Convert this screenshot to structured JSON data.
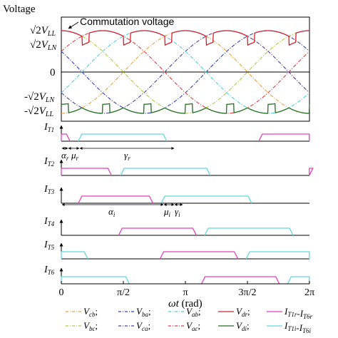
{
  "chart_data": [
    {
      "type": "line",
      "ylabel": "Voltage",
      "annotation": "Commutation voltage",
      "y_ticks": [
        "√2V_LL",
        "√2V_LN",
        "0",
        "-√2V_LN",
        "-√2V_LL"
      ],
      "x_range_rad": [
        0,
        6.2832
      ],
      "grid": false,
      "series": [
        {
          "name": "V_cb",
          "legend": "V_cb;",
          "color": "#f0a03c",
          "style": "dash-dot",
          "kind": "line-line",
          "phase_deg": -90
        },
        {
          "name": "V_bc",
          "legend": "V_bc;",
          "color": "#a8d040",
          "style": "dash-dot",
          "kind": "line-line",
          "phase_deg": 90
        },
        {
          "name": "V_ba",
          "legend": "V_ba;",
          "color": "#3040c0",
          "style": "dash-dot",
          "kind": "line-line",
          "phase_deg": 150
        },
        {
          "name": "V_ca",
          "legend": "V_ca;",
          "color": "#5040a0",
          "style": "dash-dot",
          "kind": "line-line",
          "phase_deg": -150
        },
        {
          "name": "V_ab",
          "legend": "V_ab;",
          "color": "#50d0e0",
          "style": "dash-dot",
          "kind": "line-line",
          "phase_deg": -30
        },
        {
          "name": "V_ac",
          "legend": "V_ac;",
          "color": "#e04040",
          "style": "dash-dot",
          "kind": "line-line",
          "phase_deg": 30
        },
        {
          "name": "V_dr",
          "legend": "V_dr;",
          "color": "#d02030",
          "style": "solid",
          "kind": "envelope-top"
        },
        {
          "name": "V_di",
          "legend": "V_di;",
          "color": "#207020",
          "style": "solid",
          "kind": "envelope-bottom"
        }
      ]
    },
    {
      "type": "line",
      "xlabel": "ωt (rad)",
      "x_ticks": [
        "0",
        "π/2",
        "π",
        "3π/2",
        "2π"
      ],
      "x_range_rad": [
        0,
        6.2832
      ],
      "annotations": [
        "α_r",
        "μ_r",
        "γ_r",
        "α_i",
        "μ_i",
        "γ_i"
      ],
      "legend_extra": [
        {
          "name": "I_T1r-I_T6r",
          "color": "#e040c0"
        },
        {
          "name": "I_T1i-I_T6i",
          "color": "#60d8e0"
        }
      ],
      "series": [
        {
          "name": "I_T1",
          "rectifier_on_rad": [
            [
              5.0,
              6.28
            ],
            [
              0,
              0.13
            ]
          ],
          "inverter_on_rad": [
            [
              0.43,
              2.58
            ]
          ]
        },
        {
          "name": "I_T2",
          "rectifier_on_rad": [
            [
              6.28,
              6.28
            ],
            [
              0,
              1.18
            ]
          ],
          "inverter_on_rad": [
            [
              1.5,
              3.68
            ]
          ]
        },
        {
          "name": "I_T3",
          "rectifier_on_rad": [
            [
              0.43,
              2.23
            ]
          ],
          "inverter_on_rad": [
            [
              2.53,
              4.73
            ]
          ]
        },
        {
          "name": "I_T4",
          "rectifier_on_rad": [
            [
              1.45,
              3.33
            ]
          ],
          "inverter_on_rad": [
            [
              3.63,
              5.78
            ]
          ]
        },
        {
          "name": "I_T5",
          "rectifier_on_rad": [
            [
              2.5,
              4.38
            ]
          ],
          "inverter_on_rad": [
            [
              0,
              0.58
            ],
            [
              4.68,
              6.28
            ]
          ]
        },
        {
          "name": "I_T6",
          "rectifier_on_rad": [
            [
              3.55,
              5.43
            ]
          ],
          "inverter_on_rad": [
            [
              0,
              1.63
            ],
            [
              5.73,
              6.28
            ]
          ]
        }
      ]
    }
  ],
  "legend": [
    {
      "sub": "cb",
      "color": "#f0a03c",
      "style": "dash-dot"
    },
    {
      "sub": "ba",
      "color": "#3040c0",
      "style": "dash-dot"
    },
    {
      "sub": "ab",
      "color": "#50d0e0",
      "style": "dash-dot"
    },
    {
      "sub": "dr",
      "color": "#d02030",
      "style": "solid"
    },
    {
      "sub": "T1r",
      "color": "#e040c0",
      "style": "solid",
      "label": "I_T1r-I_T6r"
    },
    {
      "sub": "bc",
      "color": "#a8d040",
      "style": "dash-dot"
    },
    {
      "sub": "ca",
      "color": "#5040a0",
      "style": "dash-dot"
    },
    {
      "sub": "ac",
      "color": "#e04040",
      "style": "dash-dot"
    },
    {
      "sub": "di",
      "color": "#207020",
      "style": "solid"
    },
    {
      "sub": "T1i",
      "color": "#60d8e0",
      "style": "solid",
      "label": "I_T1i-I_T6i"
    }
  ]
}
